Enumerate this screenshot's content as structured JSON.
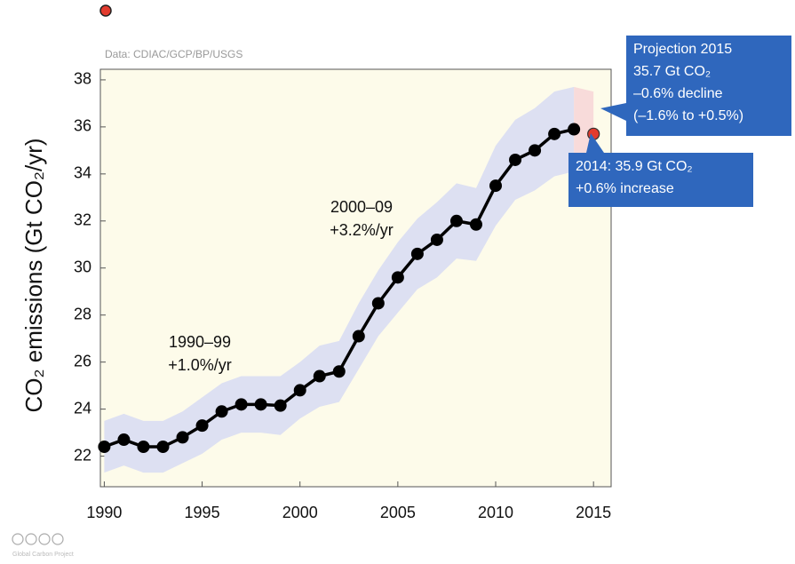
{
  "chart_data": {
    "type": "line",
    "source": "Data: CDIAC/GCP/BP/USGS",
    "ylabel": "CO₂ emissions (Gt CO₂/yr)",
    "credit": "Global Carbon Project",
    "x": [
      1990,
      1991,
      1992,
      1993,
      1994,
      1995,
      1996,
      1997,
      1998,
      1999,
      2000,
      2001,
      2002,
      2003,
      2004,
      2005,
      2006,
      2007,
      2008,
      2009,
      2010,
      2011,
      2012,
      2013,
      2014
    ],
    "series": [
      {
        "color": "#000000",
        "values": [
          22.4,
          22.7,
          22.4,
          22.4,
          22.8,
          23.3,
          23.9,
          24.2,
          24.2,
          24.15,
          24.8,
          25.4,
          25.6,
          27.1,
          28.5,
          29.6,
          30.6,
          31.2,
          32.0,
          31.85,
          33.5,
          34.6,
          35.0,
          35.7,
          35.9
        ]
      }
    ],
    "band": {
      "color": "#dde0f2",
      "lower": [
        21.3,
        21.6,
        21.3,
        21.3,
        21.7,
        22.1,
        22.7,
        23.0,
        23.0,
        22.9,
        23.6,
        24.1,
        24.3,
        25.7,
        27.1,
        28.1,
        29.1,
        29.6,
        30.4,
        30.3,
        31.8,
        32.9,
        33.3,
        33.9,
        34.1
      ],
      "upper": [
        23.5,
        23.8,
        23.5,
        23.5,
        23.9,
        24.5,
        25.1,
        25.4,
        25.4,
        25.4,
        26.0,
        26.7,
        26.9,
        28.5,
        29.9,
        31.1,
        32.1,
        32.8,
        33.6,
        33.4,
        35.2,
        36.3,
        36.8,
        37.5,
        37.7
      ]
    },
    "projection": {
      "x": 2015,
      "value": 35.7,
      "lower": 33.9,
      "upper": 37.5,
      "color": "#e23b2e",
      "band_color": "#f6d3d6"
    },
    "xlim": [
      1989.8,
      2015.9
    ],
    "ylim": [
      20.7,
      38.45
    ],
    "xticks": [
      1990,
      1995,
      2000,
      2005,
      2010,
      2015
    ],
    "yticks": [
      22,
      24,
      26,
      28,
      30,
      32,
      34,
      36,
      38
    ],
    "annotations": [
      [
        "1990–99",
        "+1.0%/yr"
      ],
      [
        "2000–09",
        "+3.2%/yr"
      ]
    ],
    "callouts": [
      [
        "Projection 2015",
        "35.7 Gt CO₂",
        "–0.6% decline",
        "(–1.6% to +0.5%)"
      ],
      [
        "2014: 35.9 Gt CO₂",
        "+0.6% increase"
      ]
    ]
  }
}
